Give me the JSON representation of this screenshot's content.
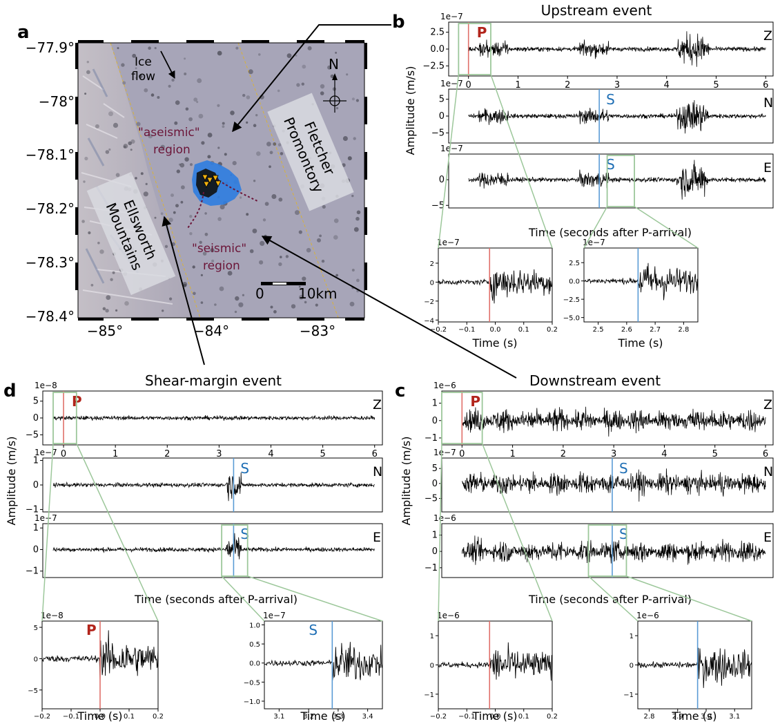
{
  "panels": {
    "a": {
      "letter": "a",
      "lat_ticks": [
        "−77.9°",
        "−78°",
        "−78.1°",
        "−78.2°",
        "−78.3°",
        "−78.4°"
      ],
      "lon_ticks": [
        "−85°",
        "−84°",
        "−83°"
      ],
      "ice_flow": [
        "Ice",
        "flow"
      ],
      "aseismic": [
        "\"aseismic\"",
        "region"
      ],
      "seismic": [
        "\"seismic\"",
        "region"
      ],
      "fletcher": [
        "Fletcher",
        "Promontory"
      ],
      "ellsworth": [
        "Ellsworth",
        "Mountains"
      ],
      "north": "N",
      "scale_zero": "0",
      "scale_ten": "10km"
    },
    "b": {
      "letter": "b",
      "title": "Upstream event",
      "ylabel": "Amplitude (m/s)",
      "xlabel": "Time (seconds after P-arrival)",
      "zoom_xlabel": "Time (s)"
    },
    "c": {
      "letter": "c",
      "title": "Downstream event",
      "ylabel": "Amplitude (m/s)",
      "xlabel": "Time (seconds after P-arrival)",
      "zoom_xlabel": "Time (s)"
    },
    "d": {
      "letter": "d",
      "title": "Shear-margin event",
      "ylabel": "Amplitude (m/s)",
      "xlabel": "Time (seconds after P-arrival)",
      "zoom_xlabel": "Time (s)"
    }
  },
  "colors": {
    "p_line": "#e0706a",
    "s_line": "#5a9bd5",
    "p_text": "#b2241b",
    "s_text": "#1f6fb5",
    "zoom_box": "#9cc79a",
    "region_text": "#6b1538",
    "seismicity_blue": "#2f7de0",
    "station_triangle": "#f2b20f"
  },
  "chart_data": [
    {
      "type": "line",
      "name": "b-Z",
      "component": "Z",
      "scale": "1e−7",
      "yticks": [
        "2.5",
        "0.0",
        "−2.5"
      ],
      "ylim": [
        -4,
        4
      ],
      "xlim": [
        -0.4,
        6.15
      ],
      "xticks": [
        "0",
        "1",
        "2",
        "3",
        "4",
        "5",
        "6"
      ],
      "phase": "P",
      "phase_time": 0.0,
      "signal_xrange": [
        0,
        6
      ]
    },
    {
      "type": "line",
      "name": "b-N",
      "component": "N",
      "scale": "1e−7",
      "yticks": [
        "5",
        "0",
        "−5"
      ],
      "ylim": [
        -8,
        8
      ],
      "xlim": [
        -0.4,
        6.15
      ],
      "phase": "S",
      "phase_time": 2.64,
      "signal_xrange": [
        0,
        6
      ]
    },
    {
      "type": "line",
      "name": "b-E",
      "component": "E",
      "scale": "1e−7",
      "yticks": [
        "0",
        "−5"
      ],
      "ylim": [
        -5.5,
        5
      ],
      "xlim": [
        -0.4,
        6.15
      ],
      "phase": "S",
      "phase_time": 2.64,
      "signal_xrange": [
        0,
        6
      ]
    },
    {
      "type": "line",
      "name": "b-zoomP",
      "scale": "1e−7",
      "yticks": [
        "2",
        "0",
        "−2",
        "−4"
      ],
      "ylim": [
        -4.2,
        3.6
      ],
      "xlim": [
        -0.2,
        0.2
      ],
      "xticks": [
        "−0.2",
        "−0.1",
        "0.0",
        "0.1",
        "0.2"
      ],
      "phase_time": -0.02
    },
    {
      "type": "line",
      "name": "b-zoomS",
      "scale": "1e−7",
      "yticks": [
        "2.5",
        "0.0",
        "−2.5",
        "−5.0"
      ],
      "ylim": [
        -5.6,
        4.5
      ],
      "xlim": [
        2.45,
        2.85
      ],
      "xticks": [
        "2.5",
        "2.6",
        "2.7",
        "2.8"
      ],
      "phase_time": 2.64
    },
    {
      "type": "line",
      "name": "c-Z",
      "component": "Z",
      "scale": "1e−6",
      "yticks": [
        "1",
        "0",
        "−1"
      ],
      "ylim": [
        -1.4,
        1.7
      ],
      "xlim": [
        -0.4,
        6.15
      ],
      "xticks": [
        "0",
        "1",
        "2",
        "3",
        "4",
        "5",
        "6"
      ],
      "phase": "P",
      "phase_time": 0.0,
      "signal_xrange": [
        0,
        6
      ]
    },
    {
      "type": "line",
      "name": "c-N",
      "component": "N",
      "scale": "1e−7",
      "yticks": [
        "5",
        "0",
        "−5"
      ],
      "ylim": [
        -9.5,
        8.5
      ],
      "xlim": [
        -0.4,
        6.15
      ],
      "phase": "S",
      "phase_time": 2.97,
      "signal_xrange": [
        0,
        6
      ]
    },
    {
      "type": "line",
      "name": "c-E",
      "component": "E",
      "scale": "1e−6",
      "yticks": [
        "1",
        "0",
        "−1"
      ],
      "ylim": [
        -1.6,
        1.7
      ],
      "xlim": [
        -0.4,
        6.15
      ],
      "phase": "S",
      "phase_time": 2.97,
      "signal_xrange": [
        0,
        6
      ]
    },
    {
      "type": "line",
      "name": "c-zoomP",
      "scale": "1e−6",
      "yticks": [
        "1",
        "0",
        "−1"
      ],
      "ylim": [
        -1.5,
        1.5
      ],
      "xlim": [
        -0.2,
        0.2
      ],
      "xticks": [
        "−0.2",
        "−0.1",
        "0.0",
        "0.1",
        "0.2"
      ],
      "phase_time": -0.02
    },
    {
      "type": "line",
      "name": "c-zoomS",
      "scale": "1e−6",
      "yticks": [
        "1",
        "0",
        "−1"
      ],
      "ylim": [
        -1.5,
        1.5
      ],
      "xlim": [
        2.76,
        3.16
      ],
      "xticks": [
        "2.8",
        "2.9",
        "3.0",
        "3.1"
      ],
      "phase_time": 2.97
    },
    {
      "type": "line",
      "name": "d-Z",
      "component": "Z",
      "scale": "1e−8",
      "yticks": [
        "5",
        "0",
        "−5"
      ],
      "ylim": [
        -8,
        8
      ],
      "xlim": [
        -0.4,
        6.15
      ],
      "xticks": [
        "0",
        "1",
        "2",
        "3",
        "4",
        "5",
        "6"
      ],
      "phase": "P",
      "phase_time": 0.0,
      "signal_xrange": [
        -0.2,
        6
      ]
    },
    {
      "type": "line",
      "name": "d-N",
      "component": "N",
      "scale": "1e−7",
      "yticks": [
        "1",
        "0",
        "−1"
      ],
      "ylim": [
        -1.1,
        1.1
      ],
      "xlim": [
        -0.4,
        6.15
      ],
      "phase": "S",
      "phase_time": 3.28,
      "signal_xrange": [
        -0.2,
        6
      ]
    },
    {
      "type": "line",
      "name": "d-E",
      "component": "E",
      "scale": "1e−7",
      "yticks": [
        "1",
        "0",
        "−1"
      ],
      "ylim": [
        -1.3,
        1.2
      ],
      "xlim": [
        -0.4,
        6.15
      ],
      "phase": "S",
      "phase_time": 3.28,
      "signal_xrange": [
        -0.2,
        6
      ]
    },
    {
      "type": "line",
      "name": "d-zoomP",
      "scale": "1e−8",
      "yticks": [
        "5",
        "0",
        "−5"
      ],
      "ylim": [
        -8,
        6
      ],
      "xlim": [
        -0.2,
        0.2
      ],
      "xticks": [
        "−0.2",
        "−0.1",
        "0.0",
        "0.1",
        "0.2"
      ],
      "phase_time": 0.0
    },
    {
      "type": "line",
      "name": "d-zoomS",
      "scale": "1e−7",
      "yticks": [
        "1.0",
        "0.5",
        "0.0",
        "−0.5",
        "−1.0"
      ],
      "ylim": [
        -1.2,
        1.1
      ],
      "xlim": [
        3.05,
        3.45
      ],
      "xticks": [
        "3.1",
        "3.2",
        "3.3",
        "3.4"
      ],
      "phase_time": 3.28
    }
  ]
}
